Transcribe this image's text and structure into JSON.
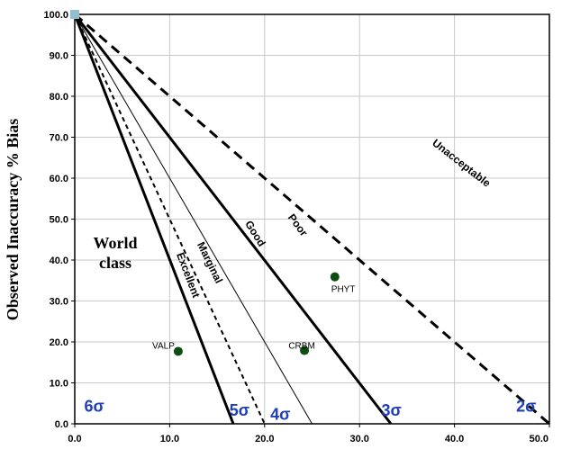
{
  "chart_data": {
    "type": "line",
    "ylabel": "Observed Inaccuracy % Bias",
    "xlabel": "",
    "xlim": [
      0,
      50
    ],
    "ylim": [
      0,
      100
    ],
    "x_ticks": [
      "0.0",
      "10.0",
      "20.0",
      "30.0",
      "40.0",
      "50.0"
    ],
    "y_ticks": [
      "0.0",
      "10.0",
      "20.0",
      "30.0",
      "40.0",
      "50.0",
      "60.0",
      "70.0",
      "80.0",
      "90.0",
      "100.0"
    ],
    "origin_marker": {
      "x": 0,
      "y": 100,
      "color": "#8fbfd0"
    },
    "lines": [
      {
        "id": "6sigma-world-class",
        "x": [
          0,
          16.7
        ],
        "y": [
          100,
          0
        ],
        "style": "solid",
        "weight": "heavy"
      },
      {
        "id": "5sigma-excellent",
        "x": [
          0,
          20
        ],
        "y": [
          100,
          0
        ],
        "style": "dashed-fine",
        "weight": "medium"
      },
      {
        "id": "4sigma-marginal",
        "x": [
          0,
          25
        ],
        "y": [
          100,
          0
        ],
        "style": "solid",
        "weight": "thin"
      },
      {
        "id": "3sigma-good",
        "x": [
          0,
          33.3
        ],
        "y": [
          100,
          0
        ],
        "style": "solid",
        "weight": "heavy"
      },
      {
        "id": "2sigma-poor",
        "x": [
          0,
          50
        ],
        "y": [
          100,
          0
        ],
        "style": "dashed",
        "weight": "heavy"
      }
    ],
    "zone_labels": [
      {
        "text": "Unacceptable",
        "x": 40.5,
        "y": 63,
        "angle": 38
      },
      {
        "text": "Poor",
        "x": 23.2,
        "y": 48,
        "angle": 53
      },
      {
        "text": "Good",
        "x": 18.7,
        "y": 46,
        "angle": 58
      },
      {
        "text": "Marginal",
        "x": 13.9,
        "y": 39,
        "angle": 64
      },
      {
        "text": "Excellent",
        "x": 11.6,
        "y": 36,
        "angle": 69
      }
    ],
    "world_class": [
      "World",
      "class"
    ],
    "sigma_labels": [
      {
        "text": "6σ",
        "x": 1.0,
        "y": 3
      },
      {
        "text": "5σ",
        "x": 16.3,
        "y": 2
      },
      {
        "text": "4σ",
        "x": 20.6,
        "y": 1
      },
      {
        "text": "3σ",
        "x": 32.3,
        "y": 2
      },
      {
        "text": "2σ",
        "x": 46.5,
        "y": 3
      }
    ],
    "points": [
      {
        "label": "VALP",
        "x": 10.9,
        "y": 17.7
      },
      {
        "label": "CRBM",
        "x": 24.2,
        "y": 17.9
      },
      {
        "label": "PHYT",
        "x": 27.4,
        "y": 35.9
      }
    ],
    "point_color": "#0d4d12",
    "sigma_color": "#1f3fb8",
    "grid": true
  }
}
